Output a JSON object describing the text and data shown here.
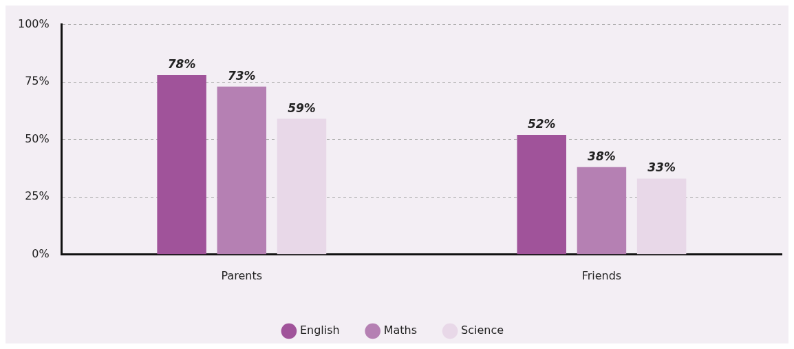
{
  "chart_data": {
    "type": "bar",
    "categories": [
      "Parents",
      "Friends"
    ],
    "series": [
      {
        "name": "English",
        "color": "#a0539a",
        "values": [
          78,
          52
        ],
        "value_labels": [
          "78%",
          "52%"
        ]
      },
      {
        "name": "Maths",
        "color": "#b580b3",
        "values": [
          73,
          38
        ],
        "value_labels": [
          "73%",
          "38%"
        ]
      },
      {
        "name": "Science",
        "color": "#e8d8e8",
        "values": [
          59,
          33
        ],
        "value_labels": [
          "59%",
          "33%"
        ]
      }
    ],
    "ylim": [
      0,
      100
    ],
    "yticks": [
      {
        "value": 0,
        "label": "0%"
      },
      {
        "value": 25,
        "label": "25%"
      },
      {
        "value": 50,
        "label": "50%"
      },
      {
        "value": 75,
        "label": "75%"
      },
      {
        "value": 100,
        "label": "100%"
      }
    ],
    "grid": "y",
    "legend": "bottom"
  }
}
